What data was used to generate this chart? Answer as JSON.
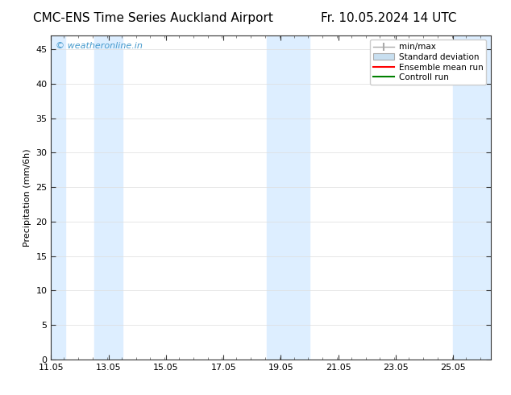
{
  "title_left": "CMC-ENS Time Series Auckland Airport",
  "title_right": "Fr. 10.05.2024 14 UTC",
  "ylabel": "Precipitation (mm/6h)",
  "xlim_start": 11.05,
  "xlim_end": 26.35,
  "ylim": [
    0,
    47
  ],
  "yticks": [
    0,
    5,
    10,
    15,
    20,
    25,
    30,
    35,
    40,
    45
  ],
  "xticks": [
    11.05,
    13.05,
    15.05,
    17.05,
    19.05,
    21.05,
    23.05,
    25.05
  ],
  "xtick_labels": [
    "11.05",
    "13.05",
    "15.05",
    "17.05",
    "19.05",
    "21.05",
    "23.05",
    "25.05"
  ],
  "background_color": "#ffffff",
  "plot_bg_color": "#ffffff",
  "shaded_bands": [
    {
      "x_start": 11.05,
      "x_end": 11.55,
      "color": "#ddeeff"
    },
    {
      "x_start": 12.55,
      "x_end": 13.55,
      "color": "#ddeeff"
    },
    {
      "x_start": 18.55,
      "x_end": 19.05,
      "color": "#ddeeff"
    },
    {
      "x_start": 19.05,
      "x_end": 20.05,
      "color": "#ddeeff"
    },
    {
      "x_start": 25.05,
      "x_end": 26.35,
      "color": "#ddeeff"
    }
  ],
  "watermark_text": "© weatheronline.in",
  "watermark_color": "#4499cc",
  "legend_items": [
    {
      "label": "min/max",
      "color": "#aaaaaa",
      "type": "errorbar"
    },
    {
      "label": "Standard deviation",
      "color": "#c8dff0",
      "type": "rect"
    },
    {
      "label": "Ensemble mean run",
      "color": "#ff0000",
      "type": "line"
    },
    {
      "label": "Controll run",
      "color": "#008000",
      "type": "line"
    }
  ],
  "title_fontsize": 11,
  "legend_fontsize": 7.5,
  "axis_fontsize": 8,
  "ylabel_fontsize": 8,
  "watermark_fontsize": 8
}
